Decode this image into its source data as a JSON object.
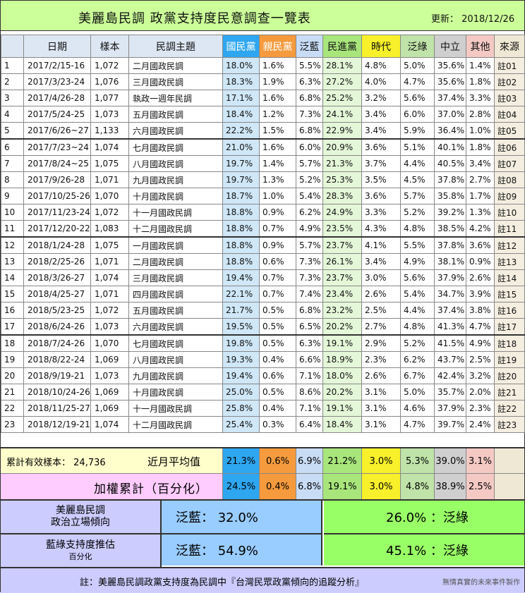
{
  "header": {
    "title": "美麗島民調  政黨支持度民意調查一覽表",
    "updated_label": "更新：",
    "updated_date": "2018/12/26"
  },
  "columns": [
    "",
    "日期",
    "樣本",
    "民調主題",
    "國民黨",
    "親民黨",
    "泛藍",
    "民進黨",
    "時代",
    "泛綠",
    "中立",
    "其他",
    "來源"
  ],
  "rows": [
    [
      "1",
      "2017/2/15-16",
      "1,072",
      "二月國政民調",
      "18.0%",
      "1.6%",
      "5.5%",
      "28.1%",
      "4.8%",
      "5.0%",
      "35.6%",
      "1.4%",
      "註01"
    ],
    [
      "2",
      "2017/3/23-24",
      "1,076",
      "三月國政民調",
      "18.3%",
      "1.9%",
      "6.3%",
      "27.2%",
      "4.0%",
      "4.7%",
      "35.6%",
      "1.8%",
      "註02"
    ],
    [
      "3",
      "2017/4/26-28",
      "1,077",
      "執政一週年民調",
      "17.1%",
      "1.6%",
      "6.8%",
      "25.2%",
      "3.2%",
      "5.6%",
      "37.4%",
      "3.3%",
      "註03"
    ],
    [
      "4",
      "2017/5/24-25",
      "1,073",
      "五月國政民調",
      "18.4%",
      "1.2%",
      "7.3%",
      "24.1%",
      "3.4%",
      "6.0%",
      "37.0%",
      "2.8%",
      "註04"
    ],
    [
      "5",
      "2017/6/26~27",
      "1,133",
      "六月國政民調",
      "22.2%",
      "1.5%",
      "6.8%",
      "22.9%",
      "3.4%",
      "5.9%",
      "36.4%",
      "1.0%",
      "註05"
    ],
    [
      "6",
      "2017/7/23~24",
      "1,074",
      "七月國政民調",
      "21.0%",
      "1.6%",
      "6.0%",
      "20.9%",
      "3.6%",
      "5.1%",
      "40.1%",
      "1.8%",
      "註06"
    ],
    [
      "7",
      "2017/8/24~25",
      "1,075",
      "八月國政民調",
      "19.7%",
      "1.4%",
      "5.7%",
      "21.3%",
      "3.7%",
      "4.4%",
      "40.5%",
      "3.4%",
      "註07"
    ],
    [
      "8",
      "2017/9/26-28",
      "1,071",
      "九月國政民調",
      "19.7%",
      "1.3%",
      "5.2%",
      "25.3%",
      "3.5%",
      "4.5%",
      "37.8%",
      "2.7%",
      "註08"
    ],
    [
      "9",
      "2017/10/25-26",
      "1,070",
      "十月國政民調",
      "18.7%",
      "1.0%",
      "5.4%",
      "28.3%",
      "3.6%",
      "5.7%",
      "35.8%",
      "1.7%",
      "註09"
    ],
    [
      "10",
      "2017/11/23-24",
      "1,072",
      "十一月國政民調",
      "18.8%",
      "0.9%",
      "6.2%",
      "24.9%",
      "3.3%",
      "5.2%",
      "39.2%",
      "1.3%",
      "註10"
    ],
    [
      "11",
      "2017/12/20-22",
      "1,083",
      "十二月國政民調",
      "18.8%",
      "0.7%",
      "4.9%",
      "23.5%",
      "4.3%",
      "4.8%",
      "38.5%",
      "4.2%",
      "註11"
    ],
    [
      "12",
      "2018/1/24-28",
      "1,075",
      "一月國政民調",
      "18.8%",
      "0.9%",
      "5.7%",
      "23.7%",
      "4.1%",
      "5.5%",
      "37.8%",
      "3.6%",
      "註12"
    ],
    [
      "13",
      "2018/2/25-26",
      "1,071",
      "二月國政民調",
      "18.8%",
      "0.6%",
      "7.3%",
      "26.1%",
      "3.4%",
      "4.9%",
      "38.1%",
      "0.9%",
      "註13"
    ],
    [
      "14",
      "2018/3/26-27",
      "1,074",
      "三月國政民調",
      "19.4%",
      "0.7%",
      "7.3%",
      "23.7%",
      "3.0%",
      "5.6%",
      "37.9%",
      "2.6%",
      "註14"
    ],
    [
      "15",
      "2018/4/25-27",
      "1,071",
      "四月國政民調",
      "22.1%",
      "0.7%",
      "7.4%",
      "23.4%",
      "2.6%",
      "5.4%",
      "34.7%",
      "3.9%",
      "註15"
    ],
    [
      "16",
      "2018/5/23-25",
      "1,072",
      "五月國政民調",
      "21.7%",
      "0.5%",
      "6.8%",
      "23.2%",
      "2.5%",
      "4.4%",
      "37.4%",
      "3.8%",
      "註16"
    ],
    [
      "17",
      "2018/6/24-26",
      "1,073",
      "六月國政民調",
      "19.5%",
      "0.5%",
      "6.5%",
      "20.2%",
      "2.7%",
      "4.8%",
      "41.3%",
      "4.7%",
      "註17"
    ],
    [
      "18",
      "2018/7/24-26",
      "1,070",
      "七月國政民調",
      "19.8%",
      "0.5%",
      "6.3%",
      "19.1%",
      "2.9%",
      "5.2%",
      "41.5%",
      "4.9%",
      "註18"
    ],
    [
      "19",
      "2018/8/22-24",
      "1,069",
      "八月國政民調",
      "19.3%",
      "0.4%",
      "6.6%",
      "18.9%",
      "2.3%",
      "6.2%",
      "43.7%",
      "2.5%",
      "註19"
    ],
    [
      "20",
      "2018/9/19-21",
      "1,073",
      "九月國政民調",
      "19.4%",
      "0.6%",
      "7.1%",
      "18.0%",
      "2.6%",
      "6.7%",
      "42.4%",
      "3.2%",
      "註20"
    ],
    [
      "21",
      "2018/10/24-26",
      "1,069",
      "十月國政民調",
      "25.0%",
      "0.5%",
      "8.6%",
      "20.2%",
      "3.1%",
      "5.0%",
      "35.7%",
      "2.0%",
      "註21"
    ],
    [
      "22",
      "2018/11/25-27",
      "1,069",
      "十一月國政民調",
      "25.8%",
      "0.4%",
      "7.1%",
      "19.1%",
      "3.1%",
      "4.6%",
      "37.9%",
      "2.3%",
      "註22"
    ],
    [
      "23",
      "2018/12/19-21",
      "1,074",
      "十二月國政民調",
      "25.4%",
      "0.3%",
      "6.4%",
      "18.4%",
      "3.1%",
      "4.7%",
      "39.7%",
      "2.4%",
      "註23"
    ]
  ],
  "summary": {
    "sample_label": "累計有效樣本：",
    "sample_total": "24,736",
    "recent_avg_label": "近月平均值",
    "recent_avg": [
      "21.3%",
      "0.6%",
      "6.9%",
      "21.2%",
      "3.0%",
      "5.3%",
      "39.0%",
      "3.1%"
    ],
    "weighted_label": "加權累計（百分化）",
    "weighted": [
      "24.5%",
      "0.4%",
      "6.8%",
      "19.1%",
      "3.0%",
      "4.8%",
      "38.9%",
      "2.5%"
    ]
  },
  "panel": {
    "row1_label_1": "美麗島民調",
    "row1_label_2": "政治立場傾向",
    "row1_blue": "泛藍：  32.0%",
    "row1_green": "26.0%  ：泛綠",
    "row2_label_1": "藍綠支持度推估",
    "row2_label_2": "百分化",
    "row2_blue": "泛藍：  54.9%",
    "row2_green": "45.1%  ：泛綠"
  },
  "footer": {
    "note": "註：美麗島民調政黨支持度為民調中『台灣民眾政黨傾向的追蹤分析』",
    "signature": "無情真實的未來事件製作"
  },
  "colors": {
    "kmt": "#2fa6f0",
    "pfp": "#f59a3d",
    "dpp": "#a8e67c",
    "npp": "#f7f02a",
    "header_bg": "#ccff99",
    "weighted_bg": "#ffccff",
    "panel_blue": "#99ccff",
    "panel_green": "#99ff66"
  }
}
